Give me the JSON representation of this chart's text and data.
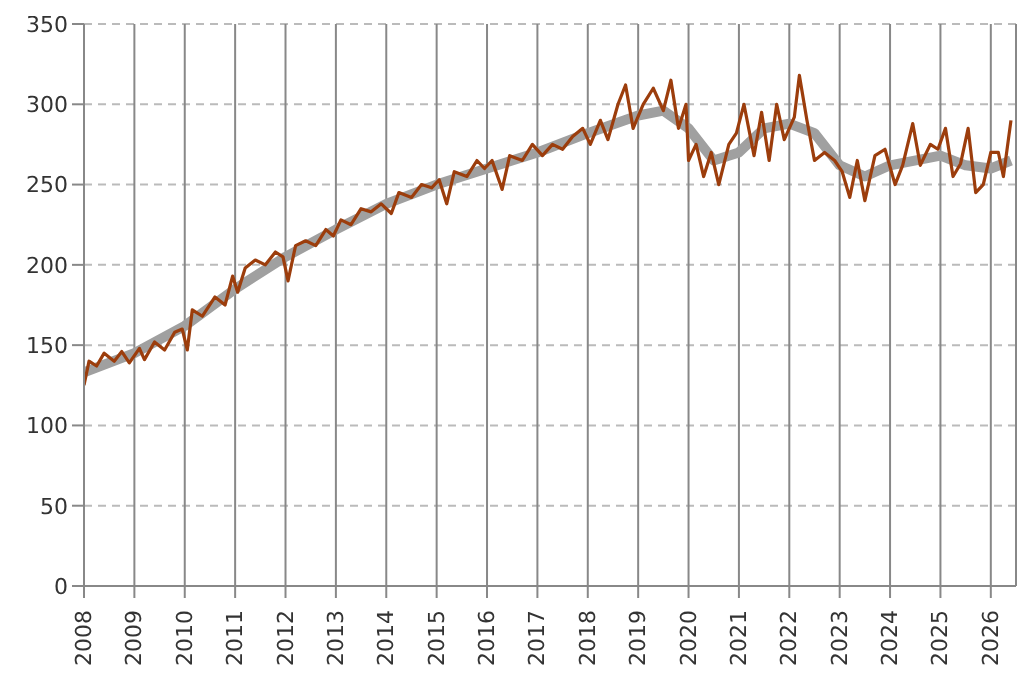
{
  "chart_data": {
    "type": "line",
    "xlim": [
      2008,
      2026.5
    ],
    "xticks": [
      2008,
      2009,
      2010,
      2011,
      2012,
      2013,
      2014,
      2015,
      2016,
      2017,
      2018,
      2019,
      2020,
      2021,
      2022,
      2023,
      2024,
      2025,
      2026
    ],
    "ylim": [
      0,
      350
    ],
    "yticks": [
      0,
      50,
      100,
      150,
      200,
      250,
      300,
      350
    ],
    "grid": true,
    "legend": false,
    "marker": "none",
    "line_style": "solid",
    "series": [
      {
        "color": "#a0a0a0",
        "x": [
          2008,
          2009,
          2010,
          2011,
          2012,
          2013,
          2014,
          2015,
          2016,
          2017,
          2018,
          2019,
          2019.5,
          2020,
          2020.5,
          2021,
          2021.5,
          2022,
          2022.5,
          2023,
          2023.5,
          2024,
          2025,
          2025.5,
          2026,
          2026.4
        ],
        "values": [
          133,
          145,
          162,
          185,
          205,
          222,
          238,
          250,
          260,
          270,
          282,
          293,
          296,
          285,
          265,
          270,
          285,
          288,
          282,
          262,
          255,
          262,
          268,
          262,
          260,
          265
        ]
      },
      {
        "color": "#9c3d0c",
        "x": [
          2008.0,
          2008.1,
          2008.25,
          2008.4,
          2008.6,
          2008.75,
          2008.9,
          2009.1,
          2009.2,
          2009.4,
          2009.6,
          2009.8,
          2009.95,
          2010.05,
          2010.15,
          2010.35,
          2010.6,
          2010.8,
          2010.95,
          2011.05,
          2011.2,
          2011.4,
          2011.6,
          2011.8,
          2011.95,
          2012.05,
          2012.2,
          2012.4,
          2012.6,
          2012.8,
          2012.95,
          2013.1,
          2013.3,
          2013.5,
          2013.7,
          2013.9,
          2014.1,
          2014.25,
          2014.5,
          2014.7,
          2014.9,
          2015.05,
          2015.2,
          2015.35,
          2015.6,
          2015.8,
          2015.95,
          2016.1,
          2016.3,
          2016.45,
          2016.7,
          2016.9,
          2017.1,
          2017.3,
          2017.5,
          2017.7,
          2017.9,
          2018.05,
          2018.25,
          2018.4,
          2018.6,
          2018.75,
          2018.9,
          2019.1,
          2019.3,
          2019.5,
          2019.65,
          2019.8,
          2019.95,
          2020.0,
          2020.15,
          2020.3,
          2020.45,
          2020.6,
          2020.8,
          2020.95,
          2021.1,
          2021.3,
          2021.45,
          2021.6,
          2021.75,
          2021.9,
          2022.1,
          2022.2,
          2022.35,
          2022.5,
          2022.7,
          2022.9,
          2023.05,
          2023.2,
          2023.35,
          2023.5,
          2023.7,
          2023.9,
          2024.1,
          2024.25,
          2024.45,
          2024.6,
          2024.8,
          2024.95,
          2025.1,
          2025.25,
          2025.4,
          2025.55,
          2025.7,
          2025.85,
          2026.0,
          2026.15,
          2026.25,
          2026.4
        ],
        "values": [
          125,
          140,
          137,
          145,
          140,
          146,
          139,
          148,
          141,
          152,
          147,
          158,
          160,
          147,
          172,
          168,
          180,
          175,
          193,
          183,
          198,
          203,
          200,
          208,
          205,
          190,
          212,
          215,
          212,
          222,
          218,
          228,
          225,
          235,
          233,
          238,
          232,
          245,
          242,
          250,
          248,
          253,
          238,
          258,
          255,
          265,
          260,
          265,
          247,
          268,
          265,
          275,
          268,
          275,
          272,
          280,
          285,
          275,
          290,
          278,
          300,
          312,
          285,
          300,
          310,
          296,
          315,
          285,
          300,
          265,
          275,
          255,
          270,
          250,
          275,
          282,
          300,
          268,
          295,
          265,
          300,
          278,
          292,
          318,
          290,
          265,
          270,
          265,
          258,
          242,
          265,
          240,
          268,
          272,
          250,
          262,
          288,
          262,
          275,
          272,
          285,
          255,
          263,
          285,
          245,
          250,
          270,
          270,
          255,
          290
        ]
      }
    ]
  }
}
